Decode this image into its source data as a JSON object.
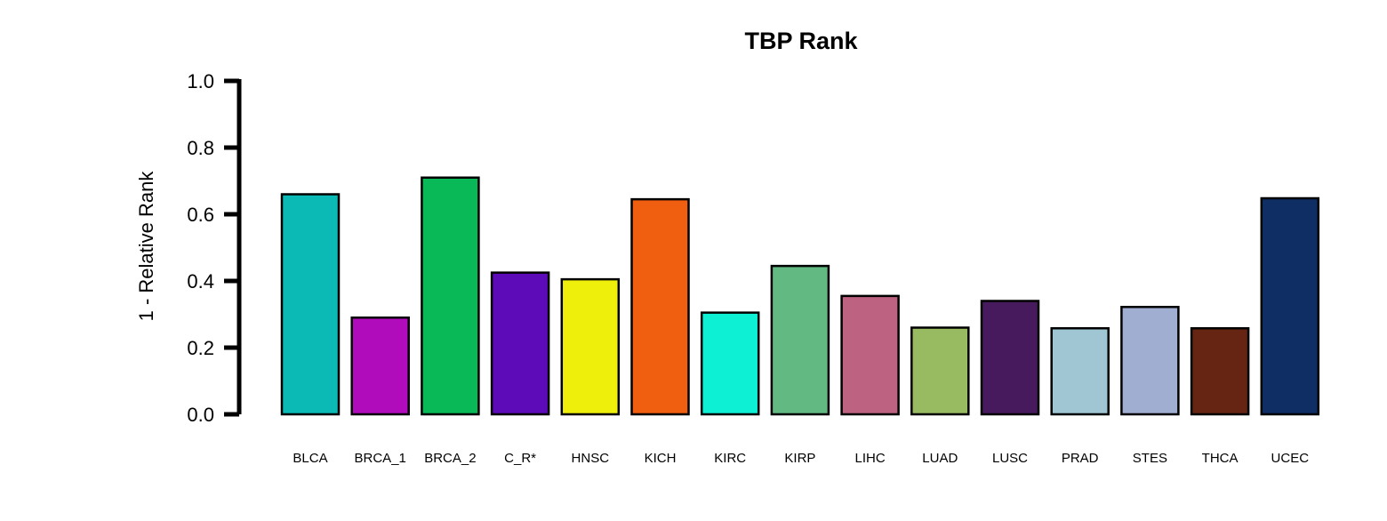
{
  "chart_data": {
    "type": "bar",
    "title": "TBP Rank",
    "xlabel": "",
    "ylabel": "1 - Relative Rank",
    "ylim": [
      0,
      1
    ],
    "yticks": [
      "0.0",
      "0.2",
      "0.4",
      "0.6",
      "0.8",
      "1.0"
    ],
    "ytick_values": [
      0,
      0.2,
      0.4,
      0.6,
      0.8,
      1.0
    ],
    "grid": false,
    "categories": [
      "BLCA",
      "BRCA_1",
      "BRCA_2",
      "C_R*",
      "HNSC",
      "KICH",
      "KIRC",
      "KIRP",
      "LIHC",
      "LUAD",
      "LUSC",
      "PRAD",
      "STES",
      "THCA",
      "UCEC"
    ],
    "values": [
      0.66,
      0.29,
      0.71,
      0.425,
      0.405,
      0.645,
      0.305,
      0.445,
      0.355,
      0.26,
      0.34,
      0.258,
      0.322,
      0.258,
      0.648
    ],
    "colors": [
      "#0bbab5",
      "#b10cbb",
      "#09b857",
      "#5d0bb8",
      "#eef00c",
      "#f05e10",
      "#0ef0d4",
      "#62b981",
      "#be6281",
      "#98bb62",
      "#471a5e",
      "#a0c5d3",
      "#a0aed1",
      "#652512",
      "#0e2e64"
    ]
  }
}
